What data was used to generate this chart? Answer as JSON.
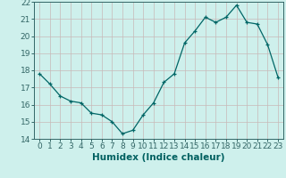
{
  "x": [
    0,
    1,
    2,
    3,
    4,
    5,
    6,
    7,
    8,
    9,
    10,
    11,
    12,
    13,
    14,
    15,
    16,
    17,
    18,
    19,
    20,
    21,
    22,
    23
  ],
  "y": [
    17.8,
    17.2,
    16.5,
    16.2,
    16.1,
    15.5,
    15.4,
    15.0,
    14.3,
    14.5,
    15.4,
    16.1,
    17.3,
    17.8,
    19.6,
    20.3,
    21.1,
    20.8,
    21.1,
    21.8,
    20.8,
    20.7,
    19.5,
    17.6
  ],
  "xlabel": "Humidex (Indice chaleur)",
  "xlim": [
    -0.5,
    23.5
  ],
  "ylim": [
    14,
    22
  ],
  "yticks": [
    14,
    15,
    16,
    17,
    18,
    19,
    20,
    21,
    22
  ],
  "xticks": [
    0,
    1,
    2,
    3,
    4,
    5,
    6,
    7,
    8,
    9,
    10,
    11,
    12,
    13,
    14,
    15,
    16,
    17,
    18,
    19,
    20,
    21,
    22,
    23
  ],
  "line_color": "#006666",
  "marker": "+",
  "bg_color": "#cef0ec",
  "grid_color": "#c8b8b8",
  "axis_color": "#336666",
  "text_color": "#006060",
  "xlabel_fontsize": 7.5,
  "tick_fontsize": 6.5,
  "markersize": 3.5,
  "linewidth": 0.9
}
